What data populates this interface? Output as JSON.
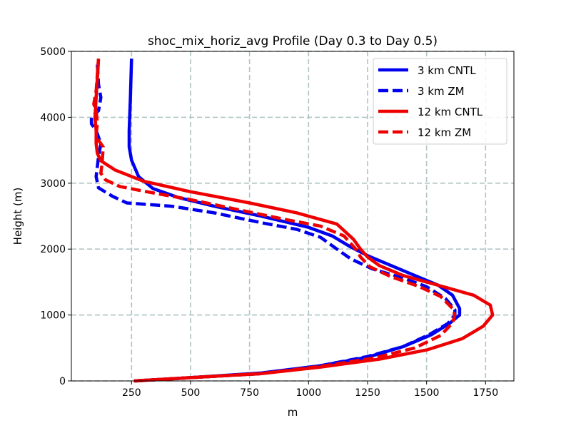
{
  "chart_data": {
    "type": "line",
    "title": "shoc_mix_horiz_avg Profile (Day 0.3 to Day 0.5)",
    "xlabel": "m",
    "ylabel": "Height (m)",
    "xlim": [
      -5,
      1870
    ],
    "ylim": [
      0,
      5000
    ],
    "xticks": [
      250,
      500,
      750,
      1000,
      1250,
      1500,
      1750
    ],
    "yticks": [
      0,
      1000,
      2000,
      3000,
      4000,
      5000
    ],
    "grid": true,
    "legend_position": "top-right",
    "series": [
      {
        "name": "3 km CNTL",
        "color": "#0000ee",
        "style": "solid",
        "points": [
          [
            260,
            0
          ],
          [
            500,
            50
          ],
          [
            800,
            120
          ],
          [
            1050,
            230
          ],
          [
            1250,
            360
          ],
          [
            1400,
            520
          ],
          [
            1520,
            700
          ],
          [
            1600,
            880
          ],
          [
            1640,
            1000
          ],
          [
            1640,
            1100
          ],
          [
            1610,
            1300
          ],
          [
            1550,
            1450
          ],
          [
            1450,
            1600
          ],
          [
            1350,
            1750
          ],
          [
            1250,
            1900
          ],
          [
            1170,
            2050
          ],
          [
            1100,
            2200
          ],
          [
            1000,
            2330
          ],
          [
            800,
            2500
          ],
          [
            600,
            2650
          ],
          [
            450,
            2780
          ],
          [
            340,
            2920
          ],
          [
            280,
            3100
          ],
          [
            250,
            3350
          ],
          [
            240,
            3550
          ],
          [
            240,
            3800
          ],
          [
            245,
            4300
          ],
          [
            250,
            4890
          ]
        ]
      },
      {
        "name": "3 km ZM",
        "color": "#0000ee",
        "style": "dashed",
        "points": [
          [
            265,
            0
          ],
          [
            500,
            50
          ],
          [
            800,
            110
          ],
          [
            1050,
            230
          ],
          [
            1250,
            370
          ],
          [
            1400,
            520
          ],
          [
            1510,
            700
          ],
          [
            1590,
            870
          ],
          [
            1620,
            1000
          ],
          [
            1620,
            1080
          ],
          [
            1580,
            1250
          ],
          [
            1500,
            1430
          ],
          [
            1400,
            1560
          ],
          [
            1270,
            1700
          ],
          [
            1180,
            1850
          ],
          [
            1120,
            2000
          ],
          [
            1050,
            2180
          ],
          [
            950,
            2300
          ],
          [
            800,
            2400
          ],
          [
            600,
            2550
          ],
          [
            420,
            2650
          ],
          [
            230,
            2700
          ],
          [
            170,
            2800
          ],
          [
            110,
            2930
          ],
          [
            100,
            3100
          ],
          [
            110,
            3400
          ],
          [
            120,
            3600
          ],
          [
            100,
            3800
          ],
          [
            80,
            3900
          ],
          [
            80,
            4000
          ],
          [
            110,
            4100
          ],
          [
            120,
            4300
          ],
          [
            110,
            4500
          ],
          [
            105,
            4800
          ]
        ]
      },
      {
        "name": "12 km CNTL",
        "color": "#ee0000",
        "style": "solid",
        "points": [
          [
            260,
            0
          ],
          [
            500,
            50
          ],
          [
            800,
            110
          ],
          [
            1050,
            210
          ],
          [
            1300,
            330
          ],
          [
            1500,
            470
          ],
          [
            1650,
            640
          ],
          [
            1740,
            830
          ],
          [
            1780,
            1000
          ],
          [
            1770,
            1150
          ],
          [
            1700,
            1300
          ],
          [
            1550,
            1450
          ],
          [
            1400,
            1600
          ],
          [
            1300,
            1750
          ],
          [
            1250,
            1880
          ],
          [
            1220,
            2000
          ],
          [
            1190,
            2150
          ],
          [
            1120,
            2380
          ],
          [
            950,
            2550
          ],
          [
            750,
            2700
          ],
          [
            500,
            2870
          ],
          [
            300,
            3030
          ],
          [
            180,
            3200
          ],
          [
            120,
            3340
          ],
          [
            105,
            3450
          ],
          [
            100,
            3600
          ],
          [
            100,
            3800
          ],
          [
            95,
            4000
          ],
          [
            100,
            4300
          ],
          [
            105,
            4600
          ],
          [
            110,
            4870
          ]
        ]
      },
      {
        "name": "12 km ZM",
        "color": "#ee0000",
        "style": "dashed",
        "points": [
          [
            270,
            0
          ],
          [
            500,
            50
          ],
          [
            800,
            110
          ],
          [
            1050,
            220
          ],
          [
            1280,
            350
          ],
          [
            1450,
            500
          ],
          [
            1560,
            690
          ],
          [
            1610,
            880
          ],
          [
            1620,
            1000
          ],
          [
            1610,
            1100
          ],
          [
            1560,
            1280
          ],
          [
            1470,
            1430
          ],
          [
            1350,
            1580
          ],
          [
            1260,
            1730
          ],
          [
            1220,
            1880
          ],
          [
            1200,
            2000
          ],
          [
            1150,
            2200
          ],
          [
            1050,
            2350
          ],
          [
            900,
            2450
          ],
          [
            700,
            2600
          ],
          [
            500,
            2750
          ],
          [
            300,
            2880
          ],
          [
            200,
            2950
          ],
          [
            140,
            3050
          ],
          [
            120,
            3150
          ],
          [
            125,
            3300
          ],
          [
            130,
            3550
          ],
          [
            110,
            3650
          ],
          [
            100,
            3750
          ],
          [
            105,
            3900
          ],
          [
            100,
            4100
          ],
          [
            90,
            4200
          ],
          [
            100,
            4400
          ],
          [
            110,
            4890
          ]
        ]
      }
    ]
  }
}
